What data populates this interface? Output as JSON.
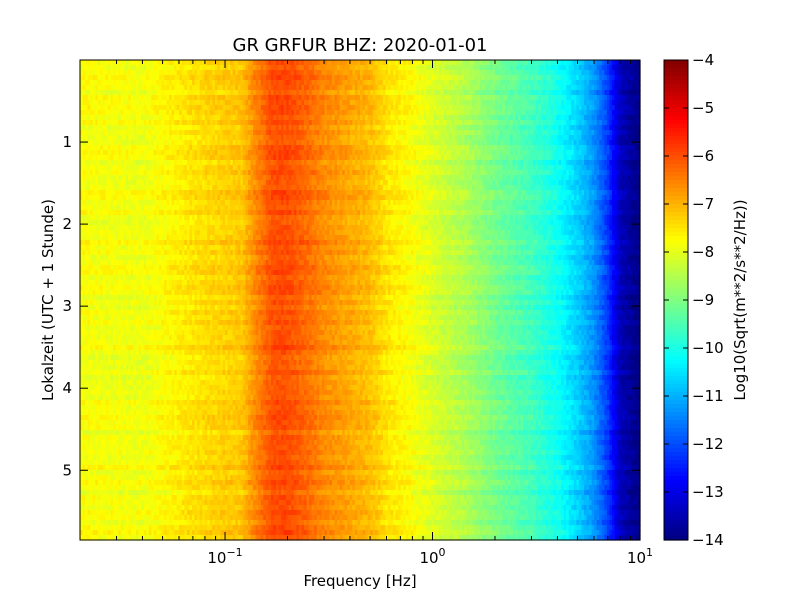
{
  "chart_data": {
    "type": "heatmap",
    "title": "GR GRFUR BHZ: 2020-01-01",
    "xlabel": "Frequency [Hz]",
    "ylabel": "Lokalzeit (UTC + 1 Stunde)",
    "x_scale": "log",
    "xlim": [
      0.02,
      10
    ],
    "ylim": [
      5.85,
      0
    ],
    "x_ticks": [
      {
        "value": 0.1,
        "base": "10",
        "exp": "−1"
      },
      {
        "value": 1,
        "base": "10",
        "exp": "0"
      },
      {
        "value": 10,
        "base": "10",
        "exp": "1"
      }
    ],
    "y_ticks": [
      {
        "value": 1,
        "label": "1"
      },
      {
        "value": 2,
        "label": "2"
      },
      {
        "value": 3,
        "label": "3"
      },
      {
        "value": 4,
        "label": "4"
      },
      {
        "value": 5,
        "label": "5"
      }
    ],
    "colorbar": {
      "label": "Log10(Sqrt(m**2/s**2/Hz))",
      "colormap": "jet",
      "range": [
        -14,
        -4
      ],
      "ticks": [
        "−4",
        "−5",
        "−6",
        "−7",
        "−8",
        "−9",
        "−10",
        "−11",
        "−12",
        "−13",
        "−14"
      ]
    },
    "spectrum_profile": {
      "frequency_hz": [
        0.02,
        0.04,
        0.06,
        0.08,
        0.1,
        0.12,
        0.14,
        0.17,
        0.2,
        0.25,
        0.3,
        0.4,
        0.5,
        0.6,
        0.8,
        1.0,
        1.5,
        2.0,
        3.0,
        4.0,
        5.0,
        6.0,
        7.0,
        8.0,
        10.0
      ],
      "log10_amplitude": [
        -7.8,
        -7.9,
        -7.6,
        -7.4,
        -7.3,
        -7.2,
        -6.6,
        -6.0,
        -6.0,
        -6.3,
        -6.6,
        -6.9,
        -7.1,
        -7.5,
        -7.8,
        -8.1,
        -8.6,
        -9.1,
        -9.6,
        -10.1,
        -10.7,
        -11.3,
        -12.2,
        -13.4,
        -14.0
      ]
    },
    "grid": false
  },
  "colors": {
    "frame": "#000000",
    "background": "#ffffff"
  }
}
